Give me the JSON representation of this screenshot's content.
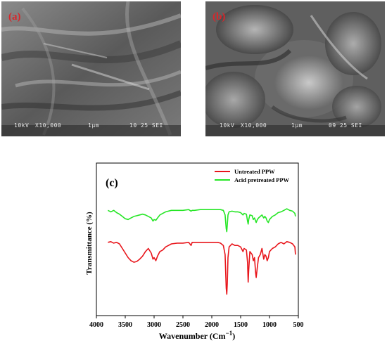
{
  "panels": {
    "a": {
      "label": "(a)",
      "footer": {
        "kv": "10kV",
        "mag": "X10,000",
        "scale": "1μm",
        "code": "10 25 SEI"
      }
    },
    "b": {
      "label": "(b)",
      "footer": {
        "kv": "10kV",
        "mag": "X10,000",
        "scale": "1μm",
        "code": "09 25 SEI"
      }
    }
  },
  "chart_data": {
    "type": "line",
    "panel_label": "(c)",
    "xlabel": "Wavenumber (Cm",
    "xlabel_sup": "−1",
    "xlabel_tail": ")",
    "ylabel": "Transmittance (%)",
    "xlim": [
      4000,
      500
    ],
    "ylim": [
      0,
      100
    ],
    "x_ticks": [
      4000,
      3500,
      3000,
      2500,
      2000,
      1500,
      1000,
      500
    ],
    "legend_position": "top-right",
    "grid": false,
    "series": [
      {
        "name": "Untreated PPW",
        "color": "#e8151b",
        "points": [
          [
            3800,
            48
          ],
          [
            3750,
            48.5
          ],
          [
            3700,
            47.5
          ],
          [
            3650,
            48
          ],
          [
            3600,
            47
          ],
          [
            3550,
            44
          ],
          [
            3500,
            41
          ],
          [
            3450,
            38
          ],
          [
            3400,
            36
          ],
          [
            3350,
            35
          ],
          [
            3300,
            35.5
          ],
          [
            3250,
            37
          ],
          [
            3200,
            39
          ],
          [
            3150,
            42
          ],
          [
            3100,
            44
          ],
          [
            3050,
            41
          ],
          [
            3020,
            37
          ],
          [
            3000,
            38
          ],
          [
            2970,
            36
          ],
          [
            2940,
            39
          ],
          [
            2900,
            42
          ],
          [
            2850,
            43
          ],
          [
            2800,
            45
          ],
          [
            2700,
            47
          ],
          [
            2600,
            47.5
          ],
          [
            2500,
            47.5
          ],
          [
            2400,
            48
          ],
          [
            2360,
            46
          ],
          [
            2340,
            48
          ],
          [
            2300,
            48
          ],
          [
            2200,
            48
          ],
          [
            2100,
            48
          ],
          [
            2000,
            48
          ],
          [
            1900,
            48
          ],
          [
            1850,
            47.5
          ],
          [
            1800,
            46
          ],
          [
            1770,
            40
          ],
          [
            1750,
            18
          ],
          [
            1740,
            14
          ],
          [
            1730,
            22
          ],
          [
            1720,
            38
          ],
          [
            1700,
            45
          ],
          [
            1650,
            47
          ],
          [
            1600,
            46
          ],
          [
            1550,
            46
          ],
          [
            1500,
            45
          ],
          [
            1460,
            42
          ],
          [
            1440,
            44
          ],
          [
            1400,
            43
          ],
          [
            1380,
            35
          ],
          [
            1370,
            22
          ],
          [
            1360,
            30
          ],
          [
            1340,
            42
          ],
          [
            1300,
            40
          ],
          [
            1280,
            36
          ],
          [
            1260,
            38
          ],
          [
            1240,
            28
          ],
          [
            1230,
            25
          ],
          [
            1210,
            32
          ],
          [
            1190,
            38
          ],
          [
            1160,
            40
          ],
          [
            1130,
            44
          ],
          [
            1100,
            37
          ],
          [
            1080,
            40
          ],
          [
            1060,
            39
          ],
          [
            1040,
            36
          ],
          [
            1020,
            38
          ],
          [
            1000,
            42
          ],
          [
            950,
            44
          ],
          [
            900,
            45
          ],
          [
            850,
            47
          ],
          [
            800,
            48
          ],
          [
            750,
            47
          ],
          [
            700,
            48.5
          ],
          [
            650,
            48
          ],
          [
            600,
            47
          ],
          [
            560,
            45
          ],
          [
            550,
            40
          ]
        ]
      },
      {
        "name": "Acid pretreated PPW",
        "color": "#25e625",
        "points": [
          [
            3800,
            69
          ],
          [
            3750,
            68
          ],
          [
            3700,
            69
          ],
          [
            3650,
            67.5
          ],
          [
            3600,
            66.5
          ],
          [
            3550,
            65
          ],
          [
            3500,
            63.5
          ],
          [
            3450,
            63
          ],
          [
            3400,
            64
          ],
          [
            3350,
            65
          ],
          [
            3300,
            65.5
          ],
          [
            3250,
            66
          ],
          [
            3200,
            66.5
          ],
          [
            3150,
            66
          ],
          [
            3100,
            65
          ],
          [
            3050,
            64
          ],
          [
            3020,
            62
          ],
          [
            3000,
            63
          ],
          [
            2970,
            62.5
          ],
          [
            2940,
            64
          ],
          [
            2900,
            66
          ],
          [
            2850,
            67
          ],
          [
            2800,
            68
          ],
          [
            2700,
            69
          ],
          [
            2600,
            69
          ],
          [
            2500,
            69
          ],
          [
            2400,
            69.5
          ],
          [
            2360,
            68.5
          ],
          [
            2340,
            69
          ],
          [
            2300,
            69
          ],
          [
            2200,
            69.5
          ],
          [
            2100,
            69.5
          ],
          [
            2000,
            69.5
          ],
          [
            1900,
            69.5
          ],
          [
            1850,
            69.5
          ],
          [
            1800,
            69
          ],
          [
            1770,
            66
          ],
          [
            1750,
            57
          ],
          [
            1740,
            55
          ],
          [
            1730,
            60
          ],
          [
            1720,
            66
          ],
          [
            1700,
            68
          ],
          [
            1650,
            68.5
          ],
          [
            1600,
            68
          ],
          [
            1550,
            68
          ],
          [
            1500,
            67.5
          ],
          [
            1460,
            66
          ],
          [
            1440,
            67
          ],
          [
            1400,
            66.5
          ],
          [
            1380,
            62
          ],
          [
            1370,
            60
          ],
          [
            1360,
            63
          ],
          [
            1340,
            66
          ],
          [
            1300,
            65.5
          ],
          [
            1280,
            63
          ],
          [
            1260,
            64
          ],
          [
            1240,
            62
          ],
          [
            1230,
            61
          ],
          [
            1210,
            63
          ],
          [
            1190,
            64
          ],
          [
            1160,
            65
          ],
          [
            1130,
            66
          ],
          [
            1100,
            64
          ],
          [
            1080,
            65
          ],
          [
            1060,
            64
          ],
          [
            1040,
            62
          ],
          [
            1020,
            61
          ],
          [
            1000,
            63
          ],
          [
            950,
            65
          ],
          [
            900,
            66
          ],
          [
            850,
            67.5
          ],
          [
            800,
            68
          ],
          [
            750,
            69
          ],
          [
            700,
            70
          ],
          [
            650,
            69
          ],
          [
            600,
            68.5
          ],
          [
            560,
            67
          ],
          [
            550,
            65
          ]
        ]
      }
    ]
  }
}
